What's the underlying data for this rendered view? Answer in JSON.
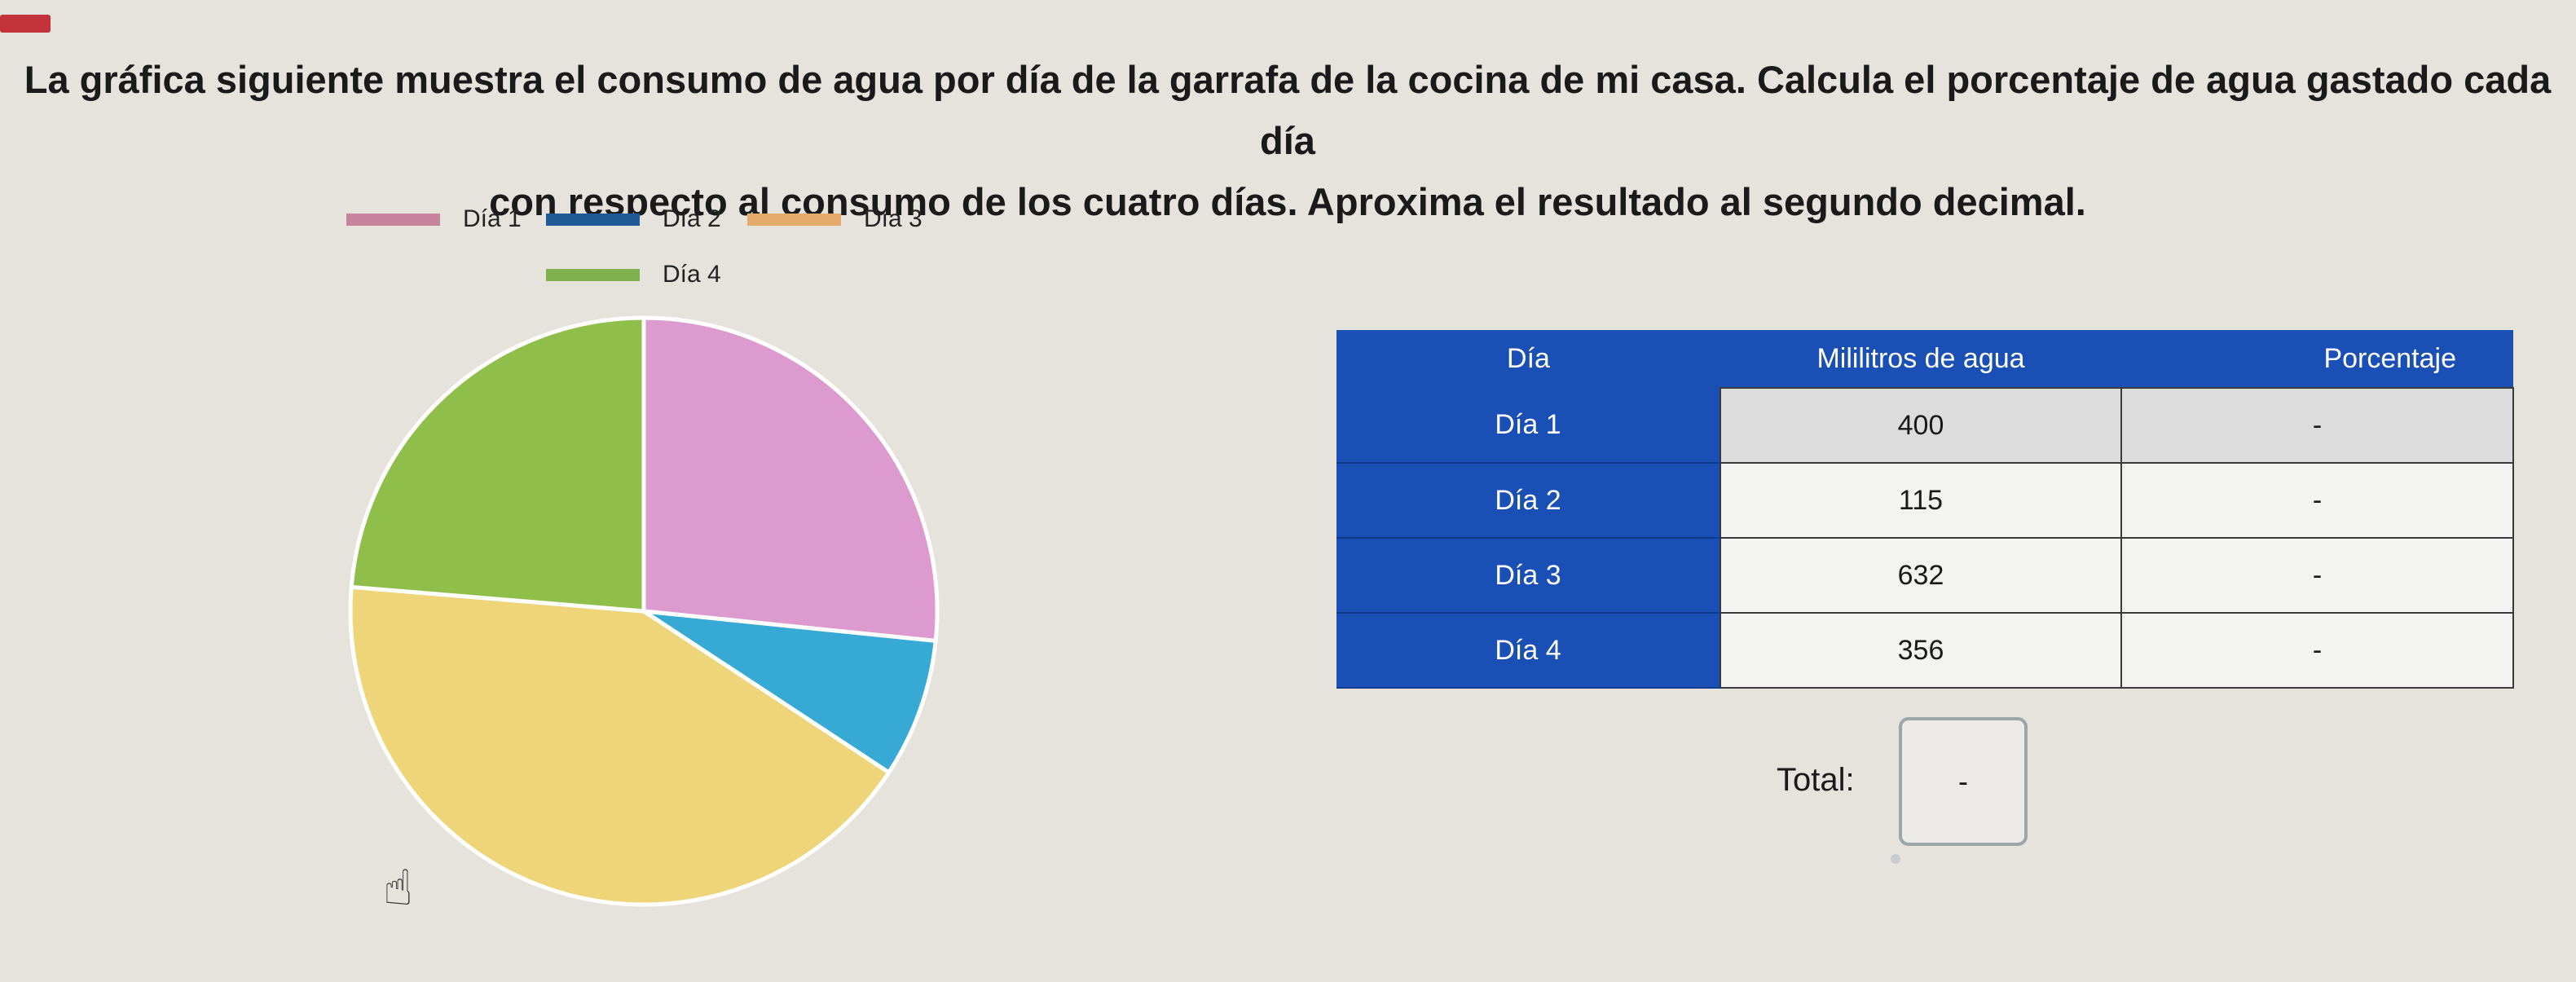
{
  "question": {
    "line1": "La gráfica siguiente muestra el consumo de agua por día de la garrafa de la cocina de mi casa. Calcula el porcentaje de agua gastado cada día",
    "line2": "con respecto al consumo de los cuatro días. Aproxima el resultado al segundo decimal."
  },
  "chart_data": {
    "type": "pie",
    "legend_position": "top",
    "labels": [
      "Día 1",
      "Día 2",
      "Día 3",
      "Día 4"
    ],
    "values": [
      400,
      115,
      632,
      356
    ],
    "colors": [
      "#dc9ace",
      "#36a9d5",
      "#eed57a",
      "#8fbf4a"
    ],
    "legend_swatch_colors": [
      "#c8849c",
      "#1f5a97",
      "#e4ab6a",
      "#7fb14e"
    ]
  },
  "table": {
    "headers": [
      "Día",
      "Mililitros de agua",
      "Porcentaje"
    ],
    "rows": [
      {
        "day": "Día 1",
        "ml": "400",
        "pct": "-"
      },
      {
        "day": "Día 2",
        "ml": "115",
        "pct": "-"
      },
      {
        "day": "Día 3",
        "ml": "632",
        "pct": "-"
      },
      {
        "day": "Día 4",
        "ml": "356",
        "pct": "-"
      }
    ]
  },
  "total": {
    "label": "Total:",
    "value": "-"
  }
}
